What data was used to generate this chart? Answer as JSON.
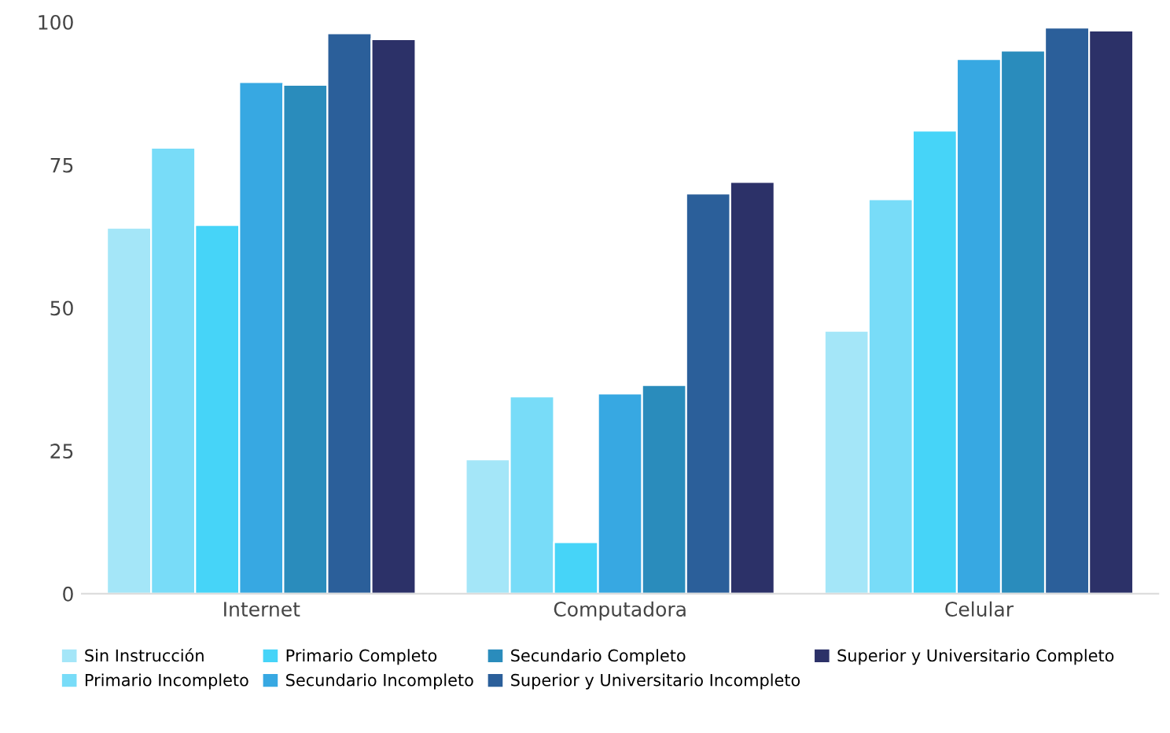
{
  "chart_data": {
    "type": "bar",
    "categories": [
      "Internet",
      "Computadora",
      "Celular"
    ],
    "ylim": [
      0,
      100
    ],
    "yticks": [
      0,
      25,
      50,
      75,
      100
    ],
    "grid": false,
    "legend": "bottom",
    "series": [
      {
        "name": "Sin Instrucción",
        "color": "#a4e6f8",
        "values": [
          64,
          23.5,
          46
        ]
      },
      {
        "name": "Primario Incompleto",
        "color": "#78dcf8",
        "values": [
          78,
          34.5,
          69
        ]
      },
      {
        "name": "Primario Completo",
        "color": "#46d4f8",
        "values": [
          64.5,
          9,
          81
        ]
      },
      {
        "name": "Secundario Incompleto",
        "color": "#37a8e2",
        "values": [
          89.5,
          35,
          93.5
        ]
      },
      {
        "name": "Secundario Completo",
        "color": "#2a8cbc",
        "values": [
          89,
          36.5,
          95
        ]
      },
      {
        "name": "Superior y Universitario Incompleto",
        "color": "#2b5f9a",
        "values": [
          98,
          70,
          99
        ]
      },
      {
        "name": "Superior y Universitario Completo",
        "color": "#2c3168",
        "values": [
          97,
          72,
          98.5
        ]
      }
    ]
  }
}
